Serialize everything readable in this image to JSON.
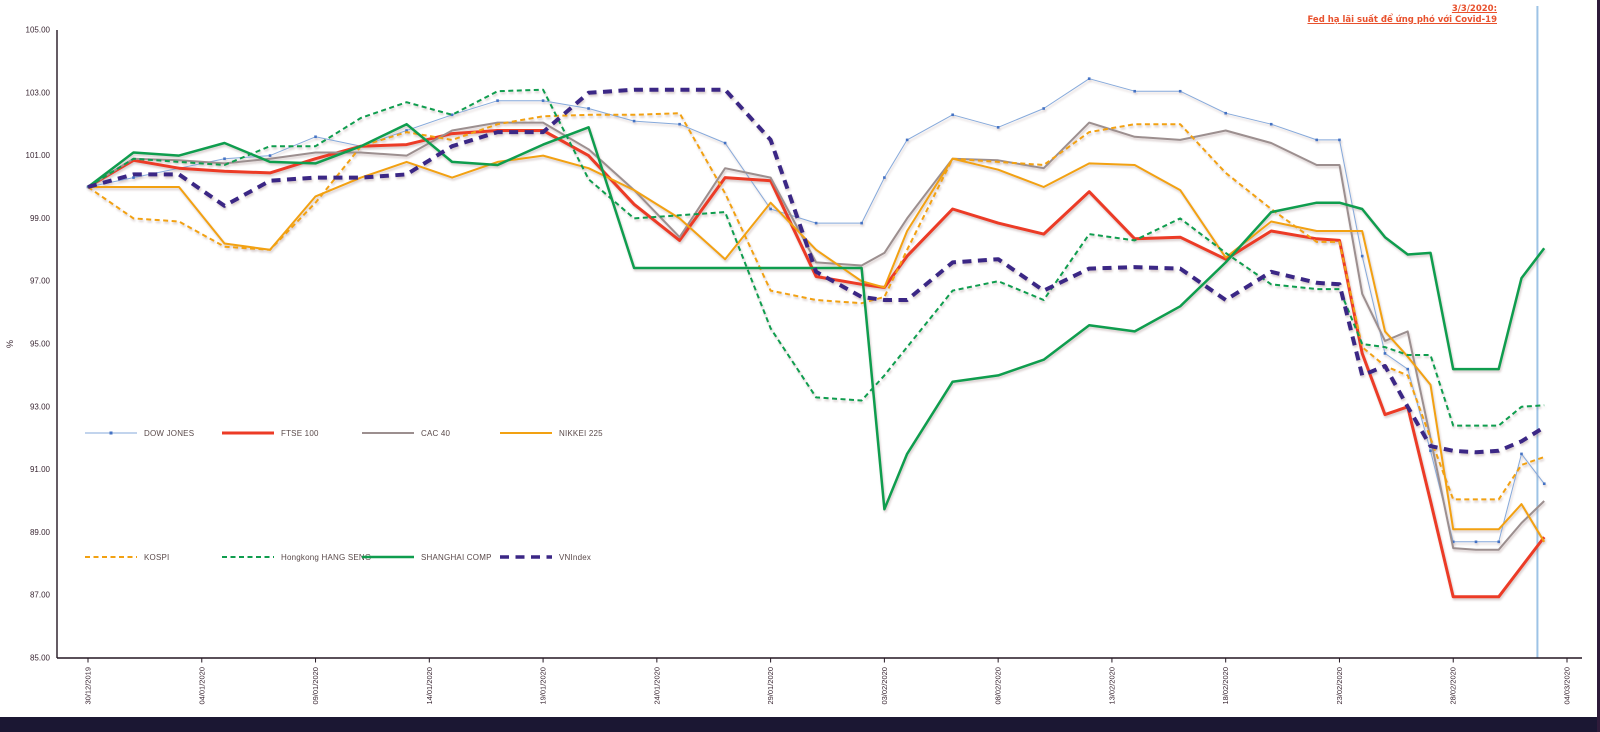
{
  "window": {
    "background": "#ffffff",
    "bottom_bar_color": "#1B1733",
    "right_border_color": "#2F1B3A",
    "axis_color": "#241722",
    "tick_text_color": "#3A2733"
  },
  "chart_data": {
    "type": "line",
    "title": "",
    "xlabel": "",
    "ylabel": "%",
    "ylim": [
      85,
      105
    ],
    "ytick_labels": [
      "105.00",
      "103.00",
      "101.00",
      "99.00",
      "97.00",
      "95.00",
      "93.00",
      "91.00",
      "89.00",
      "87.00",
      "85.00"
    ],
    "xtick_labels": [
      "30/12/2019",
      "04/01/2020",
      "09/01/2020",
      "14/01/2020",
      "19/01/2020",
      "24/01/2020",
      "29/01/2020",
      "03/02/2020",
      "08/02/2020",
      "13/02/2020",
      "18/02/2020",
      "23/02/2020",
      "28/02/2020",
      "04/03/2020"
    ],
    "xtick_days": [
      0,
      5,
      10,
      15,
      20,
      25,
      30,
      35,
      40,
      45,
      50,
      55,
      60,
      65
    ],
    "x_total_days": 65,
    "grid": false,
    "legend_position": "inside plot, two rows at left",
    "sample_days": [
      0,
      2,
      4,
      6,
      8,
      10,
      12,
      14,
      16,
      18,
      20,
      22,
      24,
      26,
      28,
      30,
      32,
      34,
      35,
      36,
      38,
      40,
      42,
      44,
      46,
      48,
      50,
      52,
      54,
      55,
      56,
      57,
      58,
      59,
      60,
      61,
      62,
      63,
      64
    ],
    "annotation": {
      "line1": "3/3/2020:",
      "line2": "Fed hạ lãi suất để ứng phó với Covid-19",
      "color": "#E8512D",
      "vline_day": 63.7,
      "vline_color": "#9DC3E6"
    },
    "series": [
      {
        "id": "dow",
        "name": "DOW JONES",
        "color": "#85A9DB",
        "marker_color": "#4472C4",
        "width": 1,
        "dash": "solid",
        "marker": true,
        "values": [
          100,
          100.3,
          100.6,
          100.9,
          101.0,
          101.6,
          101.3,
          101.8,
          102.3,
          102.75,
          102.75,
          102.5,
          102.1,
          102.0,
          101.4,
          99.3,
          98.85,
          98.85,
          100.3,
          101.5,
          102.3,
          101.9,
          102.5,
          103.45,
          103.05,
          103.05,
          102.35,
          102.0,
          101.5,
          101.5,
          97.8,
          94.7,
          94.2,
          91.6,
          88.7,
          88.7,
          88.7,
          91.5,
          90.55
        ]
      },
      {
        "id": "ftse",
        "name": "FTSE 100",
        "color": "#EC3B26",
        "width": 3,
        "dash": "solid",
        "marker": false,
        "values": [
          100,
          100.85,
          100.6,
          100.5,
          100.45,
          100.9,
          101.3,
          101.35,
          101.7,
          101.8,
          101.8,
          101.0,
          99.45,
          98.3,
          100.3,
          100.2,
          97.15,
          96.9,
          96.8,
          97.8,
          99.3,
          98.85,
          98.5,
          99.85,
          98.35,
          98.4,
          97.7,
          98.6,
          98.35,
          98.3,
          94.7,
          92.75,
          93.0,
          90.0,
          86.95,
          86.95,
          86.95,
          87.9,
          88.85
        ]
      },
      {
        "id": "cac",
        "name": "CAC 40",
        "color": "#9C8F8F",
        "width": 2,
        "dash": "solid",
        "marker": false,
        "values": [
          100,
          100.9,
          100.85,
          100.75,
          100.9,
          101.1,
          101.1,
          101.0,
          101.8,
          102.05,
          102.05,
          101.2,
          99.9,
          98.4,
          100.6,
          100.3,
          97.6,
          97.5,
          97.9,
          99.0,
          100.9,
          100.85,
          100.6,
          102.05,
          101.6,
          101.5,
          101.8,
          101.4,
          100.7,
          100.7,
          96.6,
          95.1,
          95.4,
          92.0,
          88.5,
          88.45,
          88.45,
          89.3,
          90.0
        ]
      },
      {
        "id": "nikkei",
        "name": "NIKKEI 225",
        "color": "#F2A112",
        "width": 2,
        "dash": "solid",
        "marker": false,
        "values": [
          100,
          100,
          100,
          98.2,
          98.0,
          99.7,
          100.3,
          100.8,
          100.3,
          100.8,
          101.0,
          100.6,
          99.9,
          99.0,
          97.7,
          99.5,
          98.0,
          97.0,
          96.8,
          98.6,
          100.9,
          100.55,
          100.0,
          100.75,
          100.7,
          99.9,
          97.75,
          98.9,
          98.6,
          98.6,
          98.6,
          95.4,
          94.6,
          93.7,
          89.1,
          89.1,
          89.1,
          89.9,
          88.7
        ]
      },
      {
        "id": "kospi",
        "name": "KOSPI",
        "color": "#F2A112",
        "width": 2,
        "dash": "dashed",
        "marker": false,
        "values": [
          100,
          99.0,
          98.9,
          98.1,
          98.0,
          99.5,
          101.3,
          101.75,
          101.5,
          102.0,
          102.25,
          102.3,
          102.3,
          102.35,
          99.8,
          96.7,
          96.4,
          96.3,
          96.5,
          98.0,
          100.9,
          100.8,
          100.7,
          101.75,
          102.0,
          102.0,
          100.45,
          99.3,
          98.25,
          98.25,
          94.9,
          94.3,
          94.0,
          92.0,
          90.05,
          90.05,
          90.05,
          91.15,
          91.4
        ]
      },
      {
        "id": "hangseng",
        "name": "Hongkong HANG SENG",
        "color": "#0F9D4E",
        "width": 2,
        "dash": "dashed",
        "marker": false,
        "values": [
          100,
          100.9,
          100.8,
          100.7,
          101.3,
          101.3,
          102.2,
          102.7,
          102.3,
          103.05,
          103.1,
          100.25,
          99.0,
          99.1,
          99.2,
          95.5,
          93.3,
          93.2,
          94.0,
          94.9,
          96.7,
          97.0,
          96.4,
          98.5,
          98.3,
          99.0,
          97.9,
          96.9,
          96.75,
          96.75,
          95.0,
          94.9,
          94.65,
          94.65,
          92.4,
          92.4,
          92.4,
          93.0,
          93.05
        ]
      },
      {
        "id": "shanghai",
        "name": "SHANGHAI COMP",
        "color": "#0F9D4E",
        "width": 2.5,
        "dash": "solid",
        "marker": false,
        "values": [
          100,
          101.1,
          101.0,
          101.4,
          100.8,
          100.75,
          101.3,
          102.0,
          100.8,
          100.7,
          101.35,
          101.9,
          97.42,
          97.42,
          97.42,
          97.42,
          97.42,
          97.42,
          89.74,
          91.5,
          93.8,
          94.0,
          94.5,
          95.6,
          95.4,
          96.2,
          97.6,
          99.2,
          99.5,
          99.5,
          99.3,
          98.4,
          97.85,
          97.9,
          94.2,
          94.2,
          94.2,
          97.1,
          98.05
        ]
      },
      {
        "id": "vnindex",
        "name": "VNIndex",
        "color": "#3B2785",
        "width": 4,
        "dash": "long-dash",
        "marker": false,
        "values": [
          100,
          100.4,
          100.4,
          99.4,
          100.2,
          100.3,
          100.3,
          100.4,
          101.3,
          101.75,
          101.75,
          103.0,
          103.1,
          103.1,
          103.1,
          101.5,
          97.3,
          96.5,
          96.4,
          96.4,
          97.6,
          97.7,
          96.7,
          97.4,
          97.45,
          97.4,
          96.4,
          97.3,
          96.95,
          96.9,
          94.0,
          94.3,
          93.0,
          91.75,
          91.6,
          91.55,
          91.6,
          91.9,
          92.35
        ]
      }
    ],
    "legend": {
      "rows": [
        {
          "items": [
            {
              "series_id": "dow",
              "label": "DOW JONES"
            },
            {
              "series_id": "ftse",
              "label": "FTSE 100"
            },
            {
              "series_id": "cac",
              "label": "CAC 40"
            },
            {
              "series_id": "nikkei",
              "label": "NIKKEI 225"
            }
          ]
        },
        {
          "items": [
            {
              "series_id": "kospi",
              "label": "KOSPI"
            },
            {
              "series_id": "hangseng",
              "label": "Hongkong HANG SENG"
            },
            {
              "series_id": "shanghai",
              "label": "SHANGHAI COMP"
            },
            {
              "series_id": "vnindex",
              "label": "VNIndex"
            }
          ]
        }
      ]
    }
  }
}
